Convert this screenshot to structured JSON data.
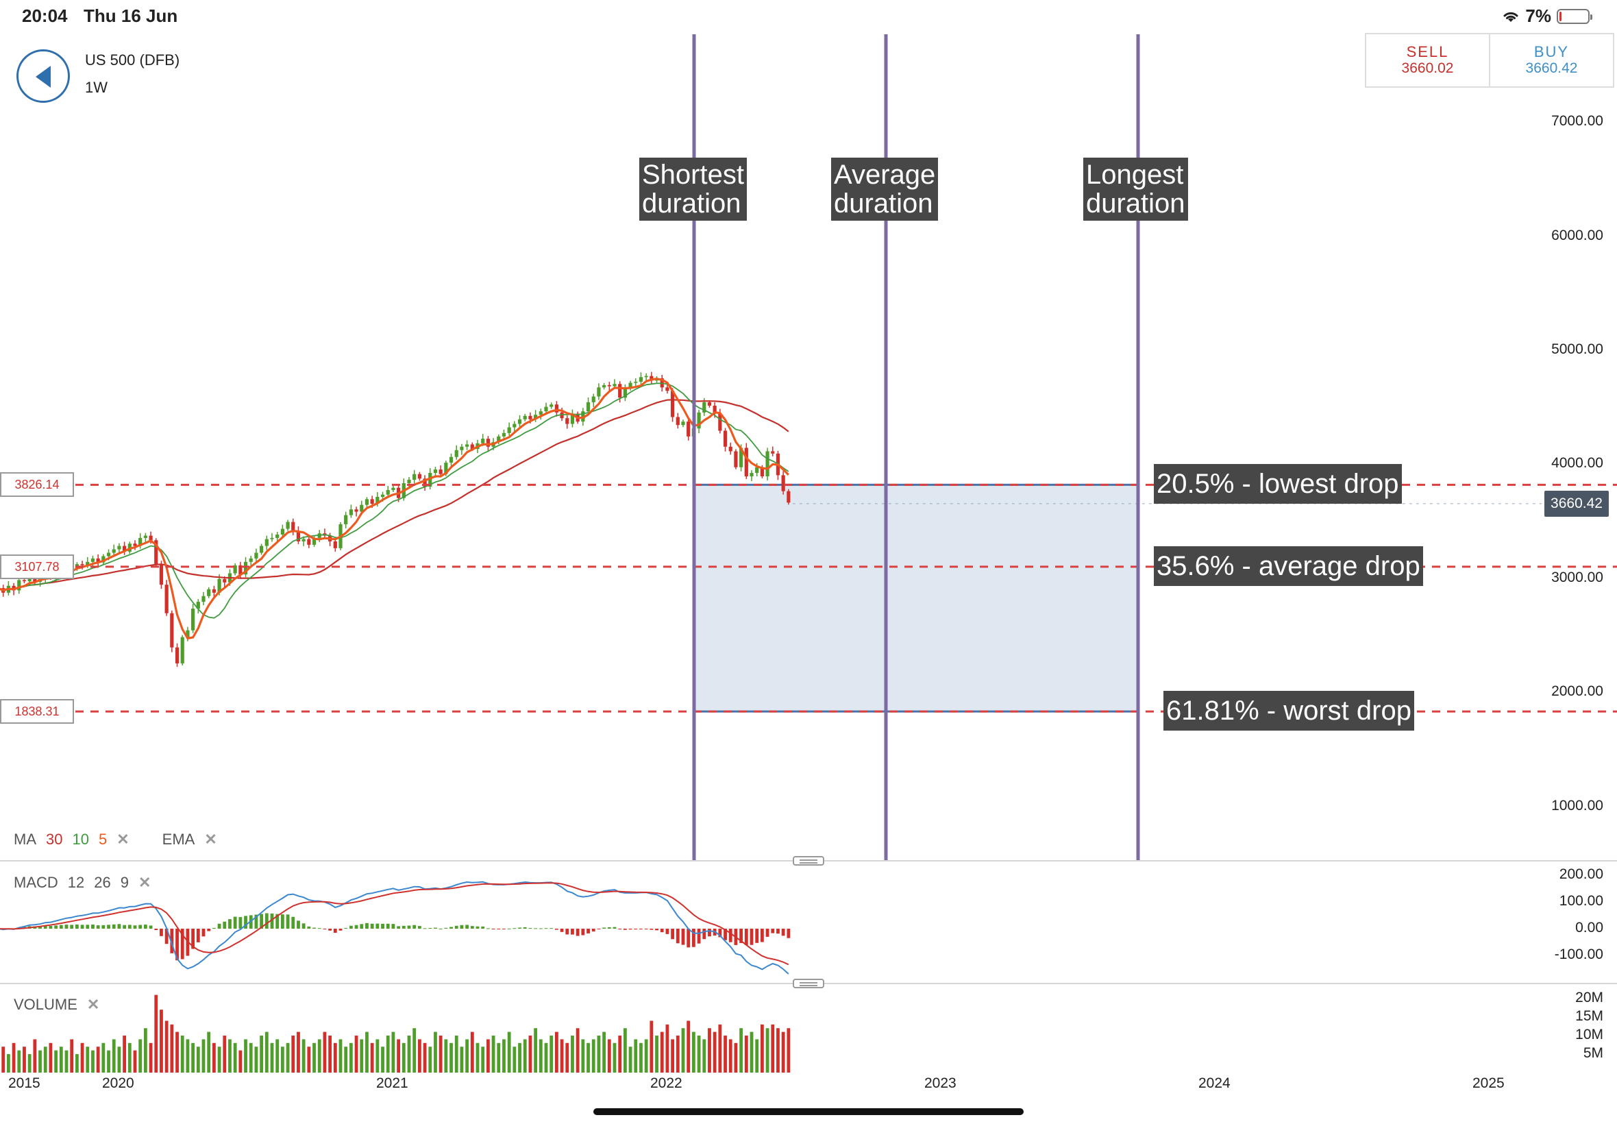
{
  "status_bar": {
    "time": "20:04",
    "date": "Thu 16 Jun",
    "battery": "7%",
    "battery_level": 0.07,
    "wifi_icon": "wifi-icon"
  },
  "header": {
    "instrument": "US 500 (DFB)",
    "period": "1W",
    "back_icon": "back-arrow-icon",
    "sell": {
      "label": "SELL",
      "price": "3660.02"
    },
    "buy": {
      "label": "BUY",
      "price": "3660.42"
    }
  },
  "indicators": {
    "ma": {
      "label": "MA",
      "periods": [
        "30",
        "10",
        "5"
      ]
    },
    "ema": {
      "label": "EMA"
    },
    "macd": {
      "label": "MACD",
      "params": [
        "12",
        "26",
        "9"
      ]
    },
    "volume": {
      "label": "VOLUME"
    },
    "close_glyph": "✕"
  },
  "colors": {
    "up": "#4f9e2c",
    "down": "#d32f2a",
    "ma30": "#c4302b",
    "ma10": "#3f9b3f",
    "ma5": "#ec5a1f",
    "duration_line": "#7c6aa3",
    "level_line": "#d94040",
    "zone_fill": "#dfe7f1",
    "zone_stroke": "#4a70a8",
    "macd_line": "#3b87d0",
    "signal_line": "#d0312d"
  },
  "chart_data": {
    "type": "candlestick",
    "price_axis": {
      "ticks": [
        "7000.00",
        "6000.00",
        "5000.00",
        "4000.00",
        "3000.00",
        "2000.00",
        "1000.00"
      ],
      "range": [
        1000,
        7000
      ]
    },
    "date_axis": {
      "ticks": [
        "2015",
        "2020",
        "2021",
        "2022",
        "2023",
        "2024",
        "2025"
      ]
    },
    "start": 2019.56,
    "step_weeks": 1,
    "close": [
      2920,
      2880,
      2940,
      2900,
      2990,
      2980,
      3010,
      2975,
      3000,
      3040,
      3010,
      3060,
      3080,
      3100,
      3090,
      3130,
      3120,
      3150,
      3180,
      3145,
      3200,
      3230,
      3260,
      3290,
      3240,
      3310,
      3290,
      3360,
      3380,
      3340,
      3130,
      2950,
      2700,
      2400,
      2260,
      2490,
      2550,
      2740,
      2800,
      2850,
      2910,
      2880,
      3000,
      2970,
      3050,
      3120,
      3040,
      3150,
      3180,
      3230,
      3290,
      3350,
      3360,
      3390,
      3440,
      3500,
      3420,
      3330,
      3350,
      3300,
      3360,
      3400,
      3380,
      3330,
      3270,
      3480,
      3560,
      3610,
      3590,
      3650,
      3700,
      3660,
      3720,
      3740,
      3780,
      3800,
      3710,
      3840,
      3870,
      3920,
      3880,
      3810,
      3930,
      3960,
      3920,
      4020,
      4070,
      4130,
      4160,
      4180,
      4140,
      4190,
      4230,
      4160,
      4200,
      4250,
      4280,
      4330,
      4360,
      4400,
      4430,
      4400,
      4440,
      4470,
      4510,
      4530,
      4460,
      4410,
      4360,
      4450,
      4380,
      4470,
      4550,
      4600,
      4680,
      4700,
      4690,
      4710,
      4590,
      4670,
      4720,
      4730,
      4770,
      4780,
      4740,
      4760,
      4680,
      4650,
      4420,
      4350,
      4380,
      4250,
      4320,
      4460,
      4550,
      4520,
      4450,
      4300,
      4160,
      4120,
      3980,
      4150,
      3900,
      3930,
      3980,
      3900,
      4120,
      4100,
      3910,
      3770,
      3670
    ],
    "levels": [
      {
        "value": 3826.14,
        "tag": "3826.14",
        "label": "20.5% - lowest drop"
      },
      {
        "value": 3107.78,
        "tag": "3107.78",
        "label": "35.6% - average drop"
      },
      {
        "value": 1838.31,
        "tag": "1838.31",
        "label": "61.81% - worst drop"
      }
    ],
    "current_price": {
      "value": 3660.42,
      "tag": "3660.42"
    },
    "durations": [
      {
        "date": 2022.1,
        "label": "Shortest\nduration"
      },
      {
        "date": 2022.8,
        "label": "Average\nduration"
      },
      {
        "date": 2023.72,
        "label": "Longest\nduration"
      }
    ],
    "zone": {
      "from_date": 2022.1,
      "to_date": 2023.72,
      "top": 3826.14,
      "bottom": 1838.31
    },
    "macd_axis": {
      "ticks": [
        "200.00",
        "100.00",
        "0.00",
        "-100.00"
      ],
      "range": [
        -160,
        220
      ]
    },
    "volume_axis": {
      "ticks": [
        "20M",
        "15M",
        "10M",
        "5M"
      ],
      "range": [
        0,
        22
      ]
    },
    "volume": [
      6,
      7,
      5,
      8,
      6,
      7,
      5,
      9,
      6,
      7,
      8,
      6,
      7,
      6,
      9,
      5,
      8,
      7,
      6,
      7,
      8,
      6,
      9,
      7,
      10,
      8,
      6,
      9,
      12,
      8,
      21,
      17,
      14,
      13,
      11,
      10,
      9,
      8,
      7,
      9,
      11,
      8,
      7,
      10,
      9,
      8,
      6,
      9,
      8,
      7,
      10,
      11,
      8,
      9,
      7,
      8,
      10,
      11,
      9,
      7,
      8,
      9,
      11,
      10,
      8,
      9,
      7,
      8,
      10,
      9,
      11,
      8,
      9,
      7,
      10,
      11,
      9,
      8,
      10,
      12,
      9,
      8,
      7,
      11,
      10,
      9,
      8,
      10,
      7,
      9,
      11,
      8,
      7,
      9,
      10,
      8,
      9,
      11,
      7,
      8,
      9,
      10,
      12,
      9,
      8,
      10,
      11,
      9,
      8,
      10,
      12,
      9,
      8,
      9,
      10,
      11,
      9,
      8,
      10,
      12,
      7,
      9,
      8,
      9,
      14,
      10,
      11,
      13,
      9,
      10,
      12,
      14,
      11,
      10,
      9,
      12,
      11,
      13,
      10,
      9,
      8,
      12,
      10,
      11,
      9,
      13,
      12,
      13,
      12,
      11,
      12
    ]
  }
}
